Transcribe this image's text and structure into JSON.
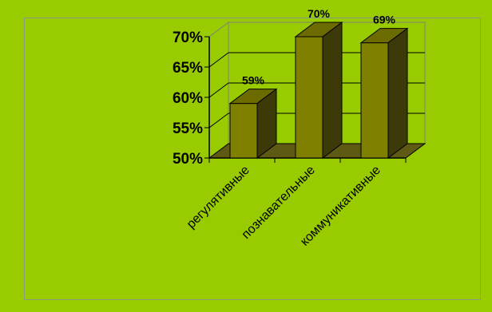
{
  "chart_data": {
    "type": "bar",
    "categories": [
      "регулятивные",
      "познавательные",
      "коммуникативные"
    ],
    "values": [
      59,
      70,
      69
    ],
    "value_labels": [
      "59%",
      "70%",
      "69%"
    ],
    "ylim": [
      50,
      70
    ],
    "yticks": [
      50,
      55,
      60,
      65,
      70
    ],
    "ytick_labels": [
      "50%",
      "55%",
      "60%",
      "65%",
      "70%"
    ],
    "grid": true,
    "legend": "none",
    "three_d": true,
    "colors": {
      "background": "#99cc00",
      "bar_front": "#808000",
      "bar_top": "#6b6b00",
      "bar_side": "#3d3a0a",
      "floor": "#5e5a14"
    }
  }
}
